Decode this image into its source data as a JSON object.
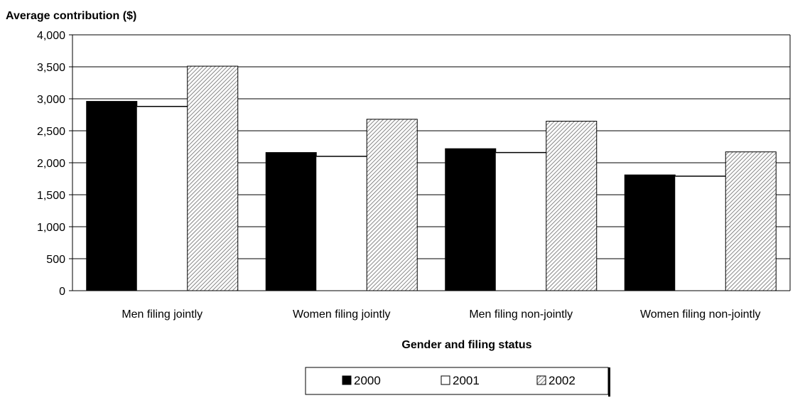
{
  "chart_data": {
    "type": "bar",
    "title": "",
    "ylabel": "Average contribution ($)",
    "xlabel": "Gender and filing status",
    "ylim": [
      0,
      4000
    ],
    "yticks": [
      0,
      500,
      1000,
      1500,
      2000,
      2500,
      3000,
      3500,
      4000
    ],
    "ytick_labels": [
      "0",
      "500",
      "1,000",
      "1,500",
      "2,000",
      "2,500",
      "3,000",
      "3,500",
      "4,000"
    ],
    "categories": [
      "Men filing jointly",
      "Women filing jointly",
      "Men filing non-jointly",
      "Women filing non-jointly"
    ],
    "series": [
      {
        "name": "2000",
        "values": [
          2960,
          2160,
          2220,
          1810
        ],
        "color": "#000000",
        "pattern": "solid"
      },
      {
        "name": "2001",
        "values": [
          2880,
          2100,
          2160,
          1790
        ],
        "color": "#ffffff",
        "pattern": "outline"
      },
      {
        "name": "2002",
        "values": [
          3510,
          2680,
          2650,
          2170
        ],
        "color": "#b8b8b8",
        "pattern": "diagonal-hatch"
      }
    ],
    "grid": true,
    "legend_position": "bottom"
  }
}
